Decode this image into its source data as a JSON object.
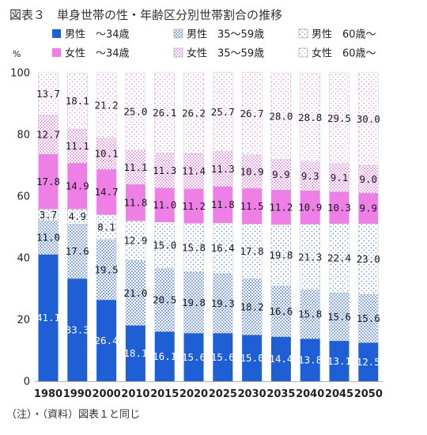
{
  "chart_data": {
    "type": "bar",
    "stacked": true,
    "title": "図表３　単身世帯の性・年齢区分別世帯割合の推移",
    "ylabel": "%",
    "ylim": [
      0,
      100
    ],
    "yticks": [
      0,
      20,
      40,
      60,
      80,
      100
    ],
    "grid": false,
    "legend_position": "top",
    "categories": [
      "1980",
      "1990",
      "2000",
      "2010",
      "2015",
      "2020",
      "2025",
      "2030",
      "2035",
      "2040",
      "2045",
      "2050"
    ],
    "series": [
      {
        "name": "男性　～34歳",
        "color": "#1f5fd6",
        "pattern": "solid",
        "values": [
          41.1,
          33.3,
          26.4,
          18.1,
          16.1,
          15.6,
          15.6,
          15.0,
          14.4,
          13.8,
          13.1,
          12.5
        ],
        "labels": [
          "41.1",
          "33.3",
          "26.4",
          "18.1",
          "16.1",
          "15.6",
          "15.6",
          "15.0",
          "14.4",
          "13.8",
          "13.1",
          "12.5"
        ]
      },
      {
        "name": "男性　35～59歳",
        "color": "#3a6fd0",
        "pattern": "dots",
        "values": [
          11.0,
          17.6,
          19.5,
          21.0,
          20.5,
          19.8,
          19.3,
          18.2,
          16.6,
          15.8,
          15.6,
          15.6
        ],
        "labels": [
          "11.0",
          "17.6",
          "19.5",
          "21.0",
          "20.5",
          "19.8",
          "19.3",
          "18.2",
          "16.6",
          "15.8",
          "15.6",
          "15.6"
        ]
      },
      {
        "name": "男性　60歳～",
        "color": "#3a6fd0",
        "pattern": "sparse",
        "values": [
          3.7,
          4.9,
          8.1,
          12.9,
          15.0,
          15.8,
          16.4,
          17.8,
          19.8,
          21.3,
          22.4,
          23.0
        ],
        "labels": [
          "3.7",
          "4.9",
          "8.1",
          "12.9",
          "15.0",
          "15.8",
          "16.4",
          "17.8",
          "19.8",
          "21.3",
          "22.4",
          "23.0"
        ]
      },
      {
        "name": "女性　～34歳",
        "color": "#ee7fe6",
        "pattern": "solid",
        "values": [
          17.8,
          14.9,
          14.7,
          11.8,
          11.0,
          11.2,
          11.8,
          11.5,
          11.2,
          10.9,
          10.3,
          9.9
        ],
        "labels": [
          "17.8",
          "14.9",
          "14.7",
          "11.8",
          "11.0",
          "11.2",
          "11.8",
          "11.5",
          "11.2",
          "10.9",
          "10.3",
          "9.9"
        ]
      },
      {
        "name": "女性　35～59歳",
        "color": "#e070d8",
        "pattern": "dots",
        "values": [
          12.7,
          11.1,
          10.1,
          11.1,
          11.3,
          11.4,
          11.3,
          10.9,
          9.9,
          9.3,
          9.1,
          9.0
        ],
        "labels": [
          "12.7",
          "11.1",
          "10.1",
          "11.1",
          "11.3",
          "11.4",
          "11.3",
          "10.9",
          "9.9",
          "9.3",
          "9.1",
          "9.0"
        ]
      },
      {
        "name": "女性　60歳～",
        "color": "#e070d8",
        "pattern": "sparse",
        "values": [
          13.7,
          18.1,
          21.2,
          25.0,
          26.1,
          26.2,
          25.7,
          26.7,
          28.0,
          28.8,
          29.5,
          30.0
        ],
        "labels": [
          "13.7",
          "18.1",
          "21.2",
          "25.0",
          "26.1",
          "26.2",
          "25.7",
          "26.7",
          "28.0",
          "28.8",
          "29.5",
          "30.0"
        ]
      }
    ]
  },
  "footnote": "（注）・（資料）図表１と同じ"
}
